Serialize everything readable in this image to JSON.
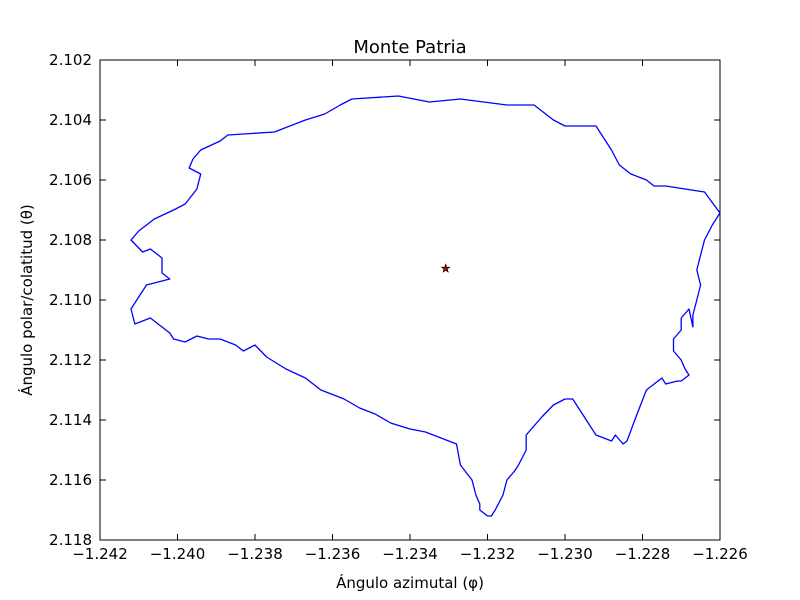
{
  "chart_data": {
    "type": "line",
    "title": "Monte Patria",
    "xlabel": "Ángulo azimutal (φ)",
    "ylabel": "Ángulo polar/colatitud (θ)",
    "xlim": [
      -1.242,
      -1.226
    ],
    "ylim": [
      2.102,
      2.118
    ],
    "y_inverted": true,
    "grid": false,
    "x_ticks": [
      -1.242,
      -1.24,
      -1.238,
      -1.236,
      -1.234,
      -1.232,
      -1.23,
      -1.228,
      -1.226
    ],
    "x_tick_labels": [
      "−1.242",
      "−1.240",
      "−1.238",
      "−1.236",
      "−1.234",
      "−1.232",
      "−1.230",
      "−1.228",
      "−1.226"
    ],
    "y_ticks": [
      2.102,
      2.104,
      2.106,
      2.108,
      2.11,
      2.112,
      2.114,
      2.116,
      2.118
    ],
    "y_tick_labels": [
      "2.102",
      "2.104",
      "2.106",
      "2.108",
      "2.110",
      "2.112",
      "2.114",
      "2.116",
      "2.118"
    ],
    "series": [
      {
        "color": "#0000ff",
        "x": [
          -1.2387,
          -1.2375,
          -1.2367,
          -1.2362,
          -1.2358,
          -1.2355,
          -1.2343,
          -1.2335,
          -1.2327,
          -1.2321,
          -1.2315,
          -1.2312,
          -1.2308,
          -1.2306,
          -1.2303,
          -1.23,
          -1.2292,
          -1.229,
          -1.2288,
          -1.2286,
          -1.2283,
          -1.2279,
          -1.2277,
          -1.2274,
          -1.2264,
          -1.226,
          -1.2262,
          -1.2264,
          -1.2265,
          -1.2266,
          -1.2265,
          -1.2266,
          -1.2267,
          -1.2267,
          -1.2268,
          -1.227,
          -1.227,
          -1.2272,
          -1.2272,
          -1.227,
          -1.2269,
          -1.2268,
          -1.227,
          -1.2271,
          -1.2274,
          -1.2275,
          -1.2279,
          -1.2282,
          -1.2284,
          -1.2285,
          -1.2287,
          -1.2288,
          -1.2292,
          -1.2294,
          -1.2296,
          -1.2298,
          -1.23,
          -1.2303,
          -1.2306,
          -1.2308,
          -1.231,
          -1.231,
          -1.2312,
          -1.2313,
          -1.2315,
          -1.2316,
          -1.2318,
          -1.2319,
          -1.232,
          -1.2322,
          -1.2322,
          -1.2323,
          -1.2324,
          -1.2327,
          -1.2328,
          -1.2332,
          -1.2336,
          -1.234,
          -1.2345,
          -1.2349,
          -1.2353,
          -1.2357,
          -1.2363,
          -1.2367,
          -1.2372,
          -1.2377,
          -1.238,
          -1.2383,
          -1.2385,
          -1.2389,
          -1.2392,
          -1.2395,
          -1.2398,
          -1.2401,
          -1.2402,
          -1.2405,
          -1.2407,
          -1.2409,
          -1.2411,
          -1.2412,
          -1.241,
          -1.2408,
          -1.2405,
          -1.2402,
          -1.2404,
          -1.2404,
          -1.2407,
          -1.2409,
          -1.2412,
          -1.241,
          -1.2406,
          -1.2401,
          -1.2398,
          -1.2395,
          -1.2394,
          -1.2397,
          -1.2396,
          -1.2394,
          -1.2389,
          -1.2387
        ],
        "y": [
          2.1045,
          2.1044,
          2.104,
          2.1038,
          2.1035,
          2.1033,
          2.1032,
          2.1034,
          2.1033,
          2.1034,
          2.1035,
          2.1035,
          2.1035,
          2.1037,
          2.104,
          2.1042,
          2.1042,
          2.1046,
          2.105,
          2.1055,
          2.1058,
          2.106,
          2.1062,
          2.1062,
          2.1064,
          2.1071,
          2.1075,
          2.108,
          2.1085,
          2.109,
          2.1095,
          2.11,
          2.1105,
          2.1109,
          2.1103,
          2.1106,
          2.111,
          2.1113,
          2.1117,
          2.112,
          2.1123,
          2.1125,
          2.1127,
          2.1127,
          2.1128,
          2.1126,
          2.113,
          2.114,
          2.1147,
          2.1148,
          2.1145,
          2.1147,
          2.1145,
          2.1141,
          2.1137,
          2.1133,
          2.1133,
          2.1135,
          2.1139,
          2.1142,
          2.1145,
          2.115,
          2.1155,
          2.1157,
          2.116,
          2.1165,
          2.117,
          2.1172,
          2.1172,
          2.117,
          2.1168,
          2.1165,
          2.116,
          2.1155,
          2.1148,
          2.1146,
          2.1144,
          2.1143,
          2.1141,
          2.1138,
          2.1136,
          2.1133,
          2.113,
          2.1126,
          2.1123,
          2.1119,
          2.1115,
          2.1117,
          2.1115,
          2.1113,
          2.1113,
          2.1112,
          2.1114,
          2.1113,
          2.1111,
          2.1108,
          2.1106,
          2.1107,
          2.1108,
          2.1103,
          2.1099,
          2.1095,
          2.1094,
          2.1093,
          2.1091,
          2.1086,
          2.1083,
          2.1084,
          2.108,
          2.1077,
          2.1073,
          2.107,
          2.1068,
          2.1063,
          2.1058,
          2.1056,
          2.1053,
          2.105,
          2.1047,
          2.1045
        ]
      },
      {
        "type": "scatter",
        "marker": "star",
        "color": "#c00000",
        "x": [
          -1.23308
        ],
        "y": [
          2.10895
        ]
      }
    ]
  }
}
